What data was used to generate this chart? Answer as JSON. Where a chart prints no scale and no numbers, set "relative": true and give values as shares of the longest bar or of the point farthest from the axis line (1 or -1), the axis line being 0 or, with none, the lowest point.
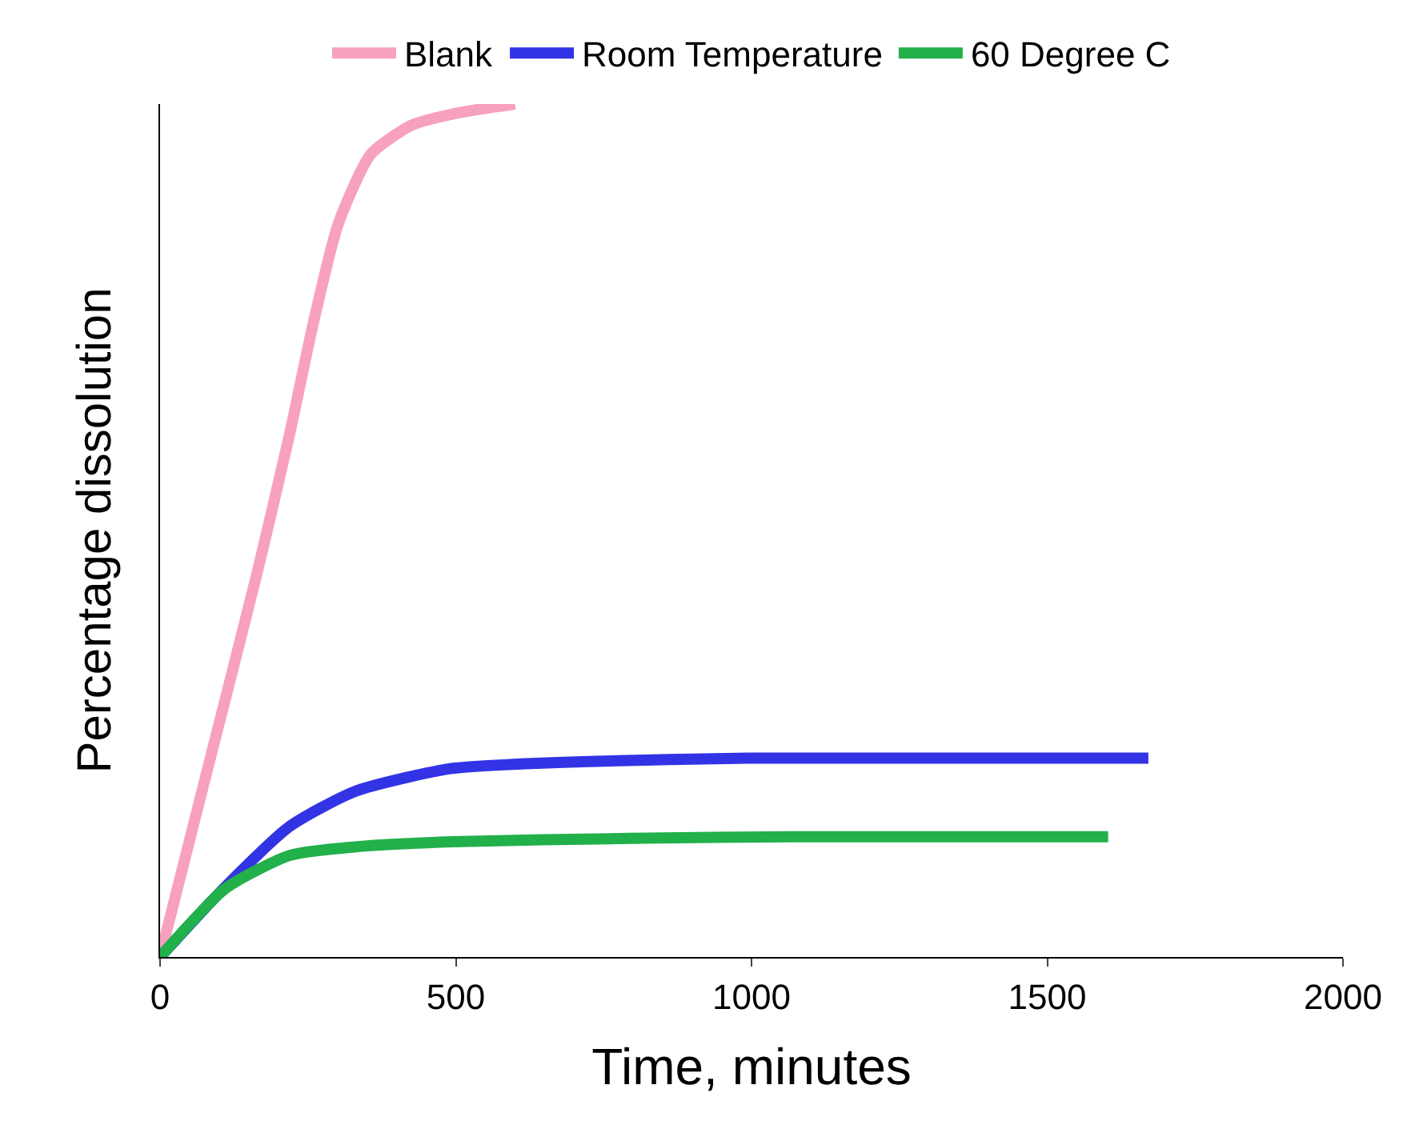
{
  "chart_data": {
    "type": "line",
    "xlabel": "Time, minutes",
    "ylabel": "Percentage dissolution",
    "relative": true,
    "tick_labels": "x",
    "xlim": [
      0,
      2000
    ],
    "xticks": [
      0,
      500,
      1000,
      1500,
      2000
    ],
    "grid": false,
    "legend": "top",
    "marker": "none",
    "line_style": "solid",
    "series": [
      {
        "name": "Blank",
        "color": "#f7a1bd",
        "x": [
          0,
          82,
          164,
          219,
          260,
          301,
          356,
          425,
          507,
          600
        ],
        "values": [
          0,
          0.225,
          0.45,
          0.613,
          0.746,
          0.859,
          0.941,
          0.975,
          0.99,
          1
        ]
      },
      {
        "name": "Room Temperature",
        "color": "#3333e6",
        "x": [
          0,
          110,
          219,
          329,
          493,
          712,
          995,
          1671
        ],
        "values": [
          0,
          0.082,
          0.153,
          0.194,
          0.221,
          0.229,
          0.233,
          0.233
        ]
      },
      {
        "name": "60 Degree C",
        "color": "#22b04b",
        "x": [
          0,
          110,
          219,
          329,
          493,
          795,
          1068,
          1603
        ],
        "values": [
          0,
          0.08,
          0.119,
          0.129,
          0.135,
          0.139,
          0.141,
          0.141
        ]
      }
    ]
  }
}
